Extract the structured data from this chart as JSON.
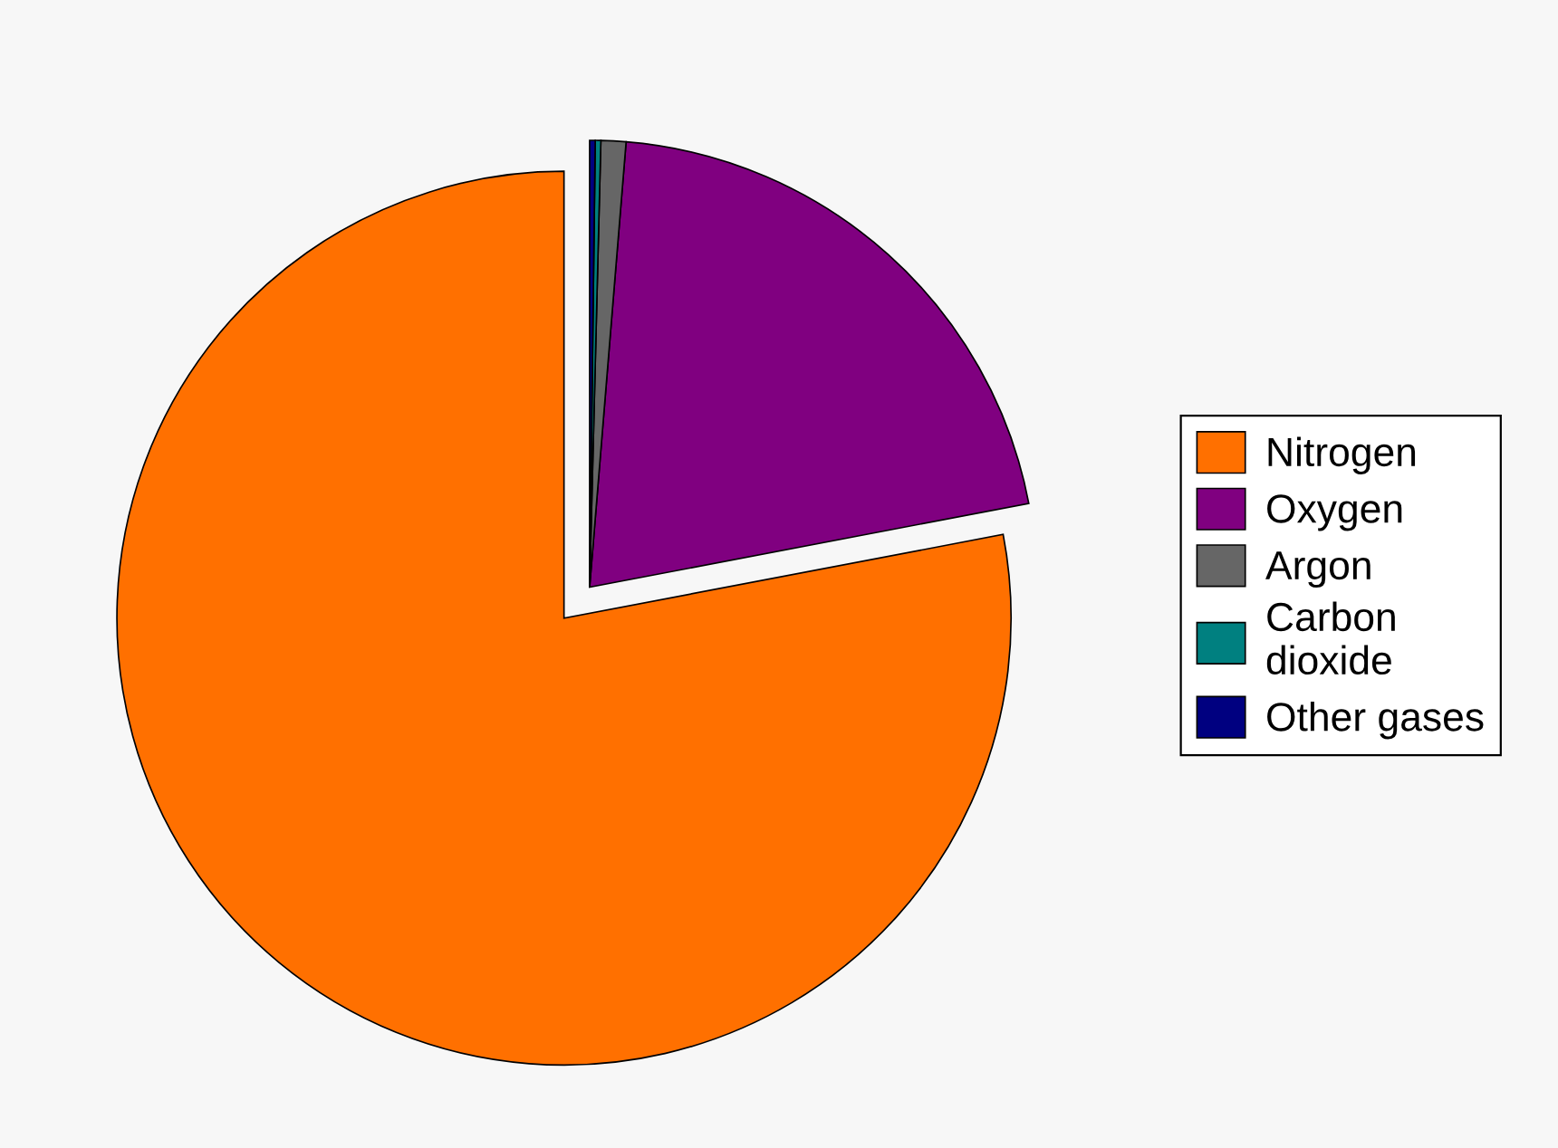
{
  "chart_data": {
    "type": "pie",
    "categories": [
      "Nitrogen",
      "Oxygen",
      "Argon",
      "Carbon\ndioxide",
      "Other gases"
    ],
    "values": [
      78,
      20.7,
      0.9,
      0.2,
      0.2
    ],
    "colors": [
      "#ff7000",
      "#800080",
      "#666666",
      "#008080",
      "#000080"
    ],
    "legend": "right"
  }
}
